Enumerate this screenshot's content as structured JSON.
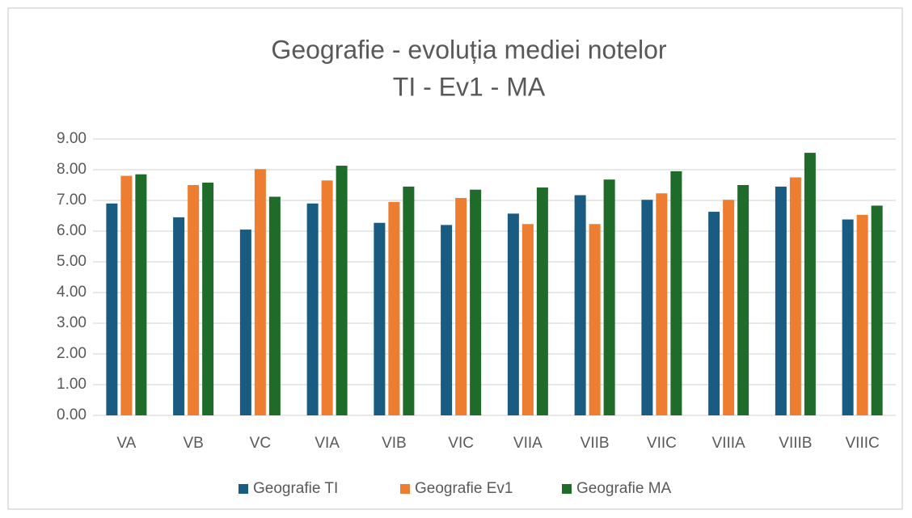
{
  "chart_data": {
    "type": "bar",
    "title": "Geografie - evoluția mediei notelor",
    "subtitle": "TI - Ev1 - MA",
    "categories": [
      "VA",
      "VB",
      "VC",
      "VIA",
      "VIB",
      "VIC",
      "VIIA",
      "VIIB",
      "VIIC",
      "VIIIA",
      "VIIIB",
      "VIIIC"
    ],
    "series": [
      {
        "name": "Geografie TI",
        "color": "#1a5b82",
        "values": [
          6.9,
          6.45,
          6.05,
          6.9,
          6.27,
          6.2,
          6.57,
          7.17,
          7.02,
          6.63,
          7.45,
          6.38
        ]
      },
      {
        "name": "Geografie Ev1",
        "color": "#ed7d31",
        "values": [
          7.8,
          7.5,
          8.02,
          7.65,
          6.95,
          7.08,
          6.23,
          6.23,
          7.23,
          7.02,
          7.75,
          6.53
        ]
      },
      {
        "name": "Geografie MA",
        "color": "#1e6b2a",
        "values": [
          7.85,
          7.58,
          7.12,
          8.13,
          7.45,
          7.35,
          7.42,
          7.68,
          7.95,
          7.5,
          8.55,
          6.83
        ]
      }
    ],
    "ylim": [
      0,
      9
    ],
    "yticks": [
      {
        "value": 0,
        "label": "0.00"
      },
      {
        "value": 1,
        "label": "1.00"
      },
      {
        "value": 2,
        "label": "2.00"
      },
      {
        "value": 3,
        "label": "3.00"
      },
      {
        "value": 4,
        "label": "4.00"
      },
      {
        "value": 5,
        "label": "5.00"
      },
      {
        "value": 6,
        "label": "6.00"
      },
      {
        "value": 7,
        "label": "7.00"
      },
      {
        "value": 8,
        "label": "8.00"
      },
      {
        "value": 9,
        "label": "9.00"
      }
    ],
    "grid": true,
    "legend": "bottom"
  }
}
